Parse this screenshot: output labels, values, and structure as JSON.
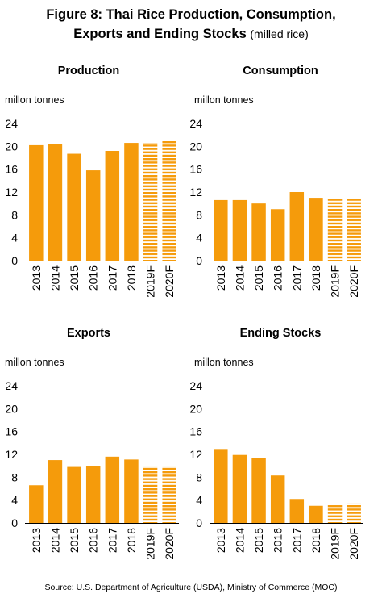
{
  "figure": {
    "title_line1": "Figure 8: Thai Rice Production, Consumption,",
    "title_line2": "Exports and Ending Stocks",
    "title_suffix": "(milled rice)",
    "source": "Source: U.S. Department of Agriculture (USDA), Ministry of Commerce (MOC)"
  },
  "colors": {
    "bar": "#F59B0B",
    "axis": "#000000"
  },
  "chart_data": [
    {
      "type": "bar",
      "title": "Production",
      "ylabel": "millon tonnes",
      "categories": [
        "2013",
        "2014",
        "2015",
        "2016",
        "2017",
        "2018",
        "2019F",
        "2020F"
      ],
      "values": [
        20.2,
        20.4,
        18.7,
        15.8,
        19.2,
        20.6,
        20.6,
        20.9
      ],
      "forecast": [
        false,
        false,
        false,
        false,
        false,
        false,
        true,
        true
      ],
      "yticks": [
        "0",
        "4",
        "8",
        "12",
        "16",
        "20",
        "24"
      ],
      "ylim": [
        0,
        24
      ]
    },
    {
      "type": "bar",
      "title": "Consumption",
      "ylabel": "millon tonnes",
      "categories": [
        "2013",
        "2014",
        "2015",
        "2016",
        "2017",
        "2018",
        "2019F",
        "2020F"
      ],
      "values": [
        10.6,
        10.6,
        10.0,
        9.0,
        12.0,
        11.0,
        10.8,
        10.8
      ],
      "forecast": [
        false,
        false,
        false,
        false,
        false,
        false,
        true,
        true
      ],
      "yticks": [
        "0",
        "4",
        "8",
        "12",
        "16",
        "20",
        "24"
      ],
      "ylim": [
        0,
        24
      ]
    },
    {
      "type": "bar",
      "title": "Exports",
      "ylabel": "millon tonnes",
      "categories": [
        "2013",
        "2014",
        "2015",
        "2016",
        "2017",
        "2018",
        "2019F",
        "2020F"
      ],
      "values": [
        6.6,
        11.0,
        9.8,
        10.0,
        11.6,
        11.1,
        9.9,
        9.9
      ],
      "forecast": [
        false,
        false,
        false,
        false,
        false,
        false,
        true,
        true
      ],
      "yticks": [
        "0",
        "4",
        "8",
        "12",
        "16",
        "20",
        "24"
      ],
      "ylim": [
        0,
        24
      ]
    },
    {
      "type": "bar",
      "title": "Ending Stocks",
      "ylabel": "millon tonnes",
      "categories": [
        "2013",
        "2014",
        "2015",
        "2016",
        "2017",
        "2018",
        "2019F",
        "2020F"
      ],
      "values": [
        12.8,
        11.9,
        11.3,
        8.3,
        4.2,
        3.0,
        3.1,
        3.4
      ],
      "forecast": [
        false,
        false,
        false,
        false,
        false,
        false,
        true,
        true
      ],
      "yticks": [
        "0",
        "4",
        "8",
        "12",
        "16",
        "20",
        "24"
      ],
      "ylim": [
        0,
        24
      ]
    }
  ]
}
